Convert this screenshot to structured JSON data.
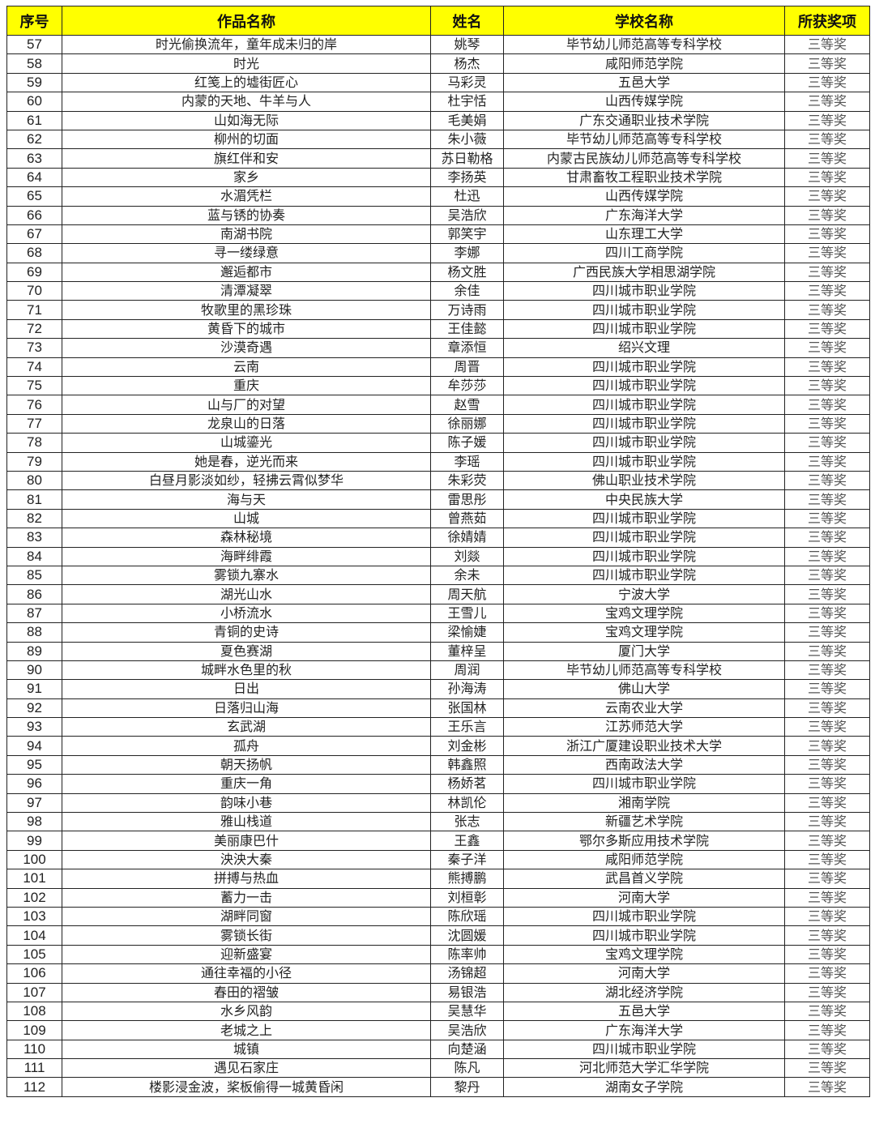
{
  "table": {
    "headers": [
      "序号",
      "作品名称",
      "姓名",
      "学校名称",
      "所获奖项"
    ],
    "header_color": "#ffff00",
    "rows": [
      [
        "57",
        "时光偷换流年，童年成未归的岸",
        "姚琴",
        "毕节幼儿师范高等专科学校",
        "三等奖"
      ],
      [
        "58",
        "时光",
        "杨杰",
        "咸阳师范学院",
        "三等奖"
      ],
      [
        "59",
        "红笺上的墟街匠心",
        "马彩灵",
        "五邑大学",
        "三等奖"
      ],
      [
        "60",
        "内蒙的天地、牛羊与人",
        "杜宇恬",
        "山西传媒学院",
        "三等奖"
      ],
      [
        "61",
        "山如海无际",
        "毛美娟",
        "广东交通职业技术学院",
        "三等奖"
      ],
      [
        "62",
        "柳州的切面",
        "朱小薇",
        "毕节幼儿师范高等专科学校",
        "三等奖"
      ],
      [
        "63",
        "旗红伴和安",
        "苏日勒格",
        "内蒙古民族幼儿师范高等专科学校",
        "三等奖"
      ],
      [
        "64",
        "家乡",
        "李扬英",
        "甘肃畜牧工程职业技术学院",
        "三等奖"
      ],
      [
        "65",
        "水湄凭栏",
        "杜迅",
        "山西传媒学院",
        "三等奖"
      ],
      [
        "66",
        "蓝与锈的协奏",
        "吴浩欣",
        "广东海洋大学",
        "三等奖"
      ],
      [
        "67",
        "南湖书院",
        "郭笑宇",
        "山东理工大学",
        "三等奖"
      ],
      [
        "68",
        "寻一缕绿意",
        "李娜",
        "四川工商学院",
        "三等奖"
      ],
      [
        "69",
        "邂逅都市",
        "杨文胜",
        "广西民族大学相思湖学院",
        "三等奖"
      ],
      [
        "70",
        "清潭凝翠",
        "余佳",
        "四川城市职业学院",
        "三等奖"
      ],
      [
        "71",
        "牧歌里的黑珍珠",
        "万诗雨",
        "四川城市职业学院",
        "三等奖"
      ],
      [
        "72",
        "黄昏下的城市",
        "王佳懿",
        "四川城市职业学院",
        "三等奖"
      ],
      [
        "73",
        "沙漠奇遇",
        "章添恒",
        "绍兴文理",
        "三等奖"
      ],
      [
        "74",
        "云南",
        "周晋",
        "四川城市职业学院",
        "三等奖"
      ],
      [
        "75",
        "重庆",
        "牟莎莎",
        "四川城市职业学院",
        "三等奖"
      ],
      [
        "76",
        "山与厂的对望",
        "赵雪",
        "四川城市职业学院",
        "三等奖"
      ],
      [
        "77",
        "龙泉山的日落",
        "徐丽娜",
        "四川城市职业学院",
        "三等奖"
      ],
      [
        "78",
        "山城鎏光",
        "陈子媛",
        "四川城市职业学院",
        "三等奖"
      ],
      [
        "79",
        "她是春，逆光而来",
        "李瑶",
        "四川城市职业学院",
        "三等奖"
      ],
      [
        "80",
        "白昼月影淡如纱，轻拂云霄似梦华",
        "朱彩荧",
        "佛山职业技术学院",
        "三等奖"
      ],
      [
        "81",
        "海与天",
        "雷思彤",
        "中央民族大学",
        "三等奖"
      ],
      [
        "82",
        "山城",
        "曾燕茹",
        "四川城市职业学院",
        "三等奖"
      ],
      [
        "83",
        "森林秘境",
        "徐婧婧",
        "四川城市职业学院",
        "三等奖"
      ],
      [
        "84",
        "海畔绯霞",
        "刘燚",
        "四川城市职业学院",
        "三等奖"
      ],
      [
        "85",
        "雾锁九寨水",
        "余未",
        "四川城市职业学院",
        "三等奖"
      ],
      [
        "86",
        "湖光山水",
        "周天航",
        "宁波大学",
        "三等奖"
      ],
      [
        "87",
        "小桥流水",
        "王雪儿",
        "宝鸡文理学院",
        "三等奖"
      ],
      [
        "88",
        "青铜的史诗",
        "梁愉婕",
        "宝鸡文理学院",
        "三等奖"
      ],
      [
        "89",
        "夏色赛湖",
        "董梓呈",
        "厦门大学",
        "三等奖"
      ],
      [
        "90",
        "城畔水色里的秋",
        "周润",
        "毕节幼儿师范高等专科学校",
        "三等奖"
      ],
      [
        "91",
        "日出",
        "孙海涛",
        "佛山大学",
        "三等奖"
      ],
      [
        "92",
        "日落归山海",
        "张国林",
        "云南农业大学",
        "三等奖"
      ],
      [
        "93",
        "玄武湖",
        "王乐言",
        "江苏师范大学",
        "三等奖"
      ],
      [
        "94",
        "孤舟",
        "刘金彬",
        "浙江广厦建设职业技术大学",
        "三等奖"
      ],
      [
        "95",
        "朝天扬帆",
        "韩鑫照",
        "西南政法大学",
        "三等奖"
      ],
      [
        "96",
        "重庆一角",
        "杨娇茗",
        "四川城市职业学院",
        "三等奖"
      ],
      [
        "97",
        "韵味小巷",
        "林凯伦",
        "湘南学院",
        "三等奖"
      ],
      [
        "98",
        "雅山栈道",
        "张志",
        "新疆艺术学院",
        "三等奖"
      ],
      [
        "99",
        "美丽康巴什",
        "王鑫",
        "鄂尔多斯应用技术学院",
        "三等奖"
      ],
      [
        "100",
        "泱泱大秦",
        "秦子洋",
        "咸阳师范学院",
        "三等奖"
      ],
      [
        "101",
        "拼搏与热血",
        "熊搏鹏",
        "武昌首义学院",
        "三等奖"
      ],
      [
        "102",
        "蓄力一击",
        "刘桓彰",
        "河南大学",
        "三等奖"
      ],
      [
        "103",
        "湖畔同窗",
        "陈欣瑶",
        "四川城市职业学院",
        "三等奖"
      ],
      [
        "104",
        "雾锁长街",
        "沈圆媛",
        "四川城市职业学院",
        "三等奖"
      ],
      [
        "105",
        "迎新盛宴",
        "陈率帅",
        "宝鸡文理学院",
        "三等奖"
      ],
      [
        "106",
        "通往幸福的小径",
        "汤锦超",
        "河南大学",
        "三等奖"
      ],
      [
        "107",
        "春田的褶皱",
        "易银浩",
        "湖北经济学院",
        "三等奖"
      ],
      [
        "108",
        "水乡风韵",
        "吴慧华",
        "五邑大学",
        "三等奖"
      ],
      [
        "109",
        "老城之上",
        "吴浩欣",
        "广东海洋大学",
        "三等奖"
      ],
      [
        "110",
        "城镇",
        "向楚涵",
        "四川城市职业学院",
        "三等奖"
      ],
      [
        "111",
        "遇见石家庄",
        "陈凡",
        "河北师范大学汇华学院",
        "三等奖"
      ],
      [
        "112",
        "楼影浸金波，桨板偷得一城黄昏闲",
        "黎丹",
        "湖南女子学院",
        "三等奖"
      ]
    ]
  }
}
